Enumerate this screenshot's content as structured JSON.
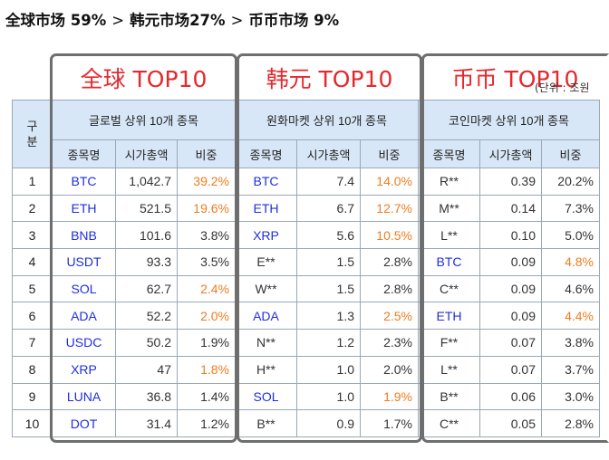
{
  "heading": {
    "part1": "全球市场 59%",
    "part2": "韩元市场27%",
    "part3": "币币市场 9%",
    "separator": ">"
  },
  "unit_label": "(단위 : 조원",
  "row_header": "구\n분",
  "groups": [
    {
      "title": "全球 TOP10",
      "subtitle": "글로벌 상위 10개 종목"
    },
    {
      "title": "韩元 TOP10",
      "subtitle": "원화마켓 상위 10개 종목"
    },
    {
      "title": "币币 TOP10",
      "subtitle": "코인마켓 상위 10개 종목"
    }
  ],
  "columns": [
    "종목명",
    "시가총액",
    "비중"
  ],
  "highlight_color": "#f07c20",
  "name_color": "#1f2ee0",
  "rows": [
    {
      "no": "1",
      "g": [
        [
          "BTC",
          "1,042.7",
          "39.2%",
          true
        ],
        [
          "BTC",
          "7.4",
          "14.0%",
          true
        ],
        [
          "R**",
          "0.39",
          "20.2%",
          false
        ]
      ]
    },
    {
      "no": "2",
      "g": [
        [
          "ETH",
          "521.5",
          "19.6%",
          true
        ],
        [
          "ETH",
          "6.7",
          "12.7%",
          true
        ],
        [
          "M**",
          "0.14",
          "7.3%",
          false
        ]
      ]
    },
    {
      "no": "3",
      "g": [
        [
          "BNB",
          "101.6",
          "3.8%",
          false
        ],
        [
          "XRP",
          "5.6",
          "10.5%",
          true
        ],
        [
          "L**",
          "0.10",
          "5.0%",
          false
        ]
      ]
    },
    {
      "no": "4",
      "g": [
        [
          "USDT",
          "93.3",
          "3.5%",
          false
        ],
        [
          "E**",
          "1.5",
          "2.8%",
          false
        ],
        [
          "BTC",
          "0.09",
          "4.8%",
          true
        ]
      ]
    },
    {
      "no": "5",
      "g": [
        [
          "SOL",
          "62.7",
          "2.4%",
          true
        ],
        [
          "W**",
          "1.5",
          "2.8%",
          false
        ],
        [
          "C**",
          "0.09",
          "4.6%",
          false
        ]
      ]
    },
    {
      "no": "6",
      "g": [
        [
          "ADA",
          "52.2",
          "2.0%",
          true
        ],
        [
          "ADA",
          "1.3",
          "2.5%",
          true
        ],
        [
          "ETH",
          "0.09",
          "4.4%",
          true
        ]
      ]
    },
    {
      "no": "7",
      "g": [
        [
          "USDC",
          "50.2",
          "1.9%",
          false
        ],
        [
          "N**",
          "1.2",
          "2.3%",
          false
        ],
        [
          "F**",
          "0.07",
          "3.8%",
          false
        ]
      ]
    },
    {
      "no": "8",
      "g": [
        [
          "XRP",
          "47",
          "1.8%",
          true
        ],
        [
          "H**",
          "1.0",
          "2.0%",
          false
        ],
        [
          "L**",
          "0.07",
          "3.7%",
          false
        ]
      ]
    },
    {
      "no": "9",
      "g": [
        [
          "LUNA",
          "36.8",
          "1.4%",
          false
        ],
        [
          "SOL",
          "1.0",
          "1.9%",
          true
        ],
        [
          "B**",
          "0.06",
          "3.0%",
          false
        ]
      ]
    },
    {
      "no": "10",
      "g": [
        [
          "DOT",
          "31.4",
          "1.2%",
          false
        ],
        [
          "B**",
          "0.9",
          "1.7%",
          false
        ],
        [
          "C**",
          "0.05",
          "2.8%",
          false
        ]
      ]
    }
  ]
}
